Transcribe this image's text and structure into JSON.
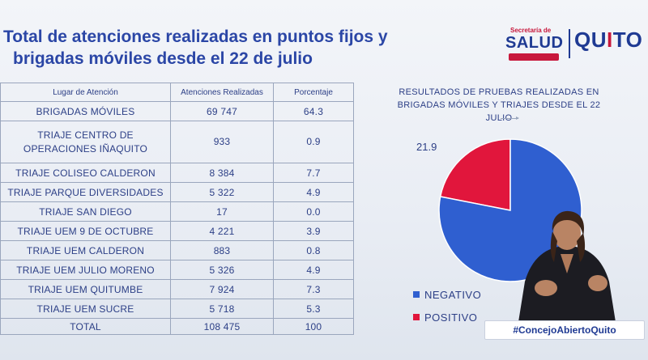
{
  "title": {
    "line1": "Total de atenciones realizadas en puntos fijos y",
    "line2": "brigadas móviles desde el 22 de julio"
  },
  "logos": {
    "salud_sub": "Secretaría de",
    "salud_word": "SALUD",
    "quito_word_a": "QU",
    "quito_word_b": "I",
    "quito_word_c": "TO"
  },
  "table": {
    "headers": [
      "Lugar de Atención",
      "Atenciones Realizadas",
      "Porcentaje"
    ],
    "rows": [
      {
        "place": "BRIGADAS MÓVILES",
        "count": "69 747",
        "pct": "64.3"
      },
      {
        "place": "TRIAJE CENTRO DE OPERACIONES IÑAQUITO",
        "count": "933",
        "pct": "0.9"
      },
      {
        "place": "TRIAJE COLISEO CALDERON",
        "count": "8 384",
        "pct": "7.7"
      },
      {
        "place": "TRIAJE PARQUE DIVERSIDADES",
        "count": "5 322",
        "pct": "4.9"
      },
      {
        "place": "TRIAJE SAN DIEGO",
        "count": "17",
        "pct": "0.0"
      },
      {
        "place": "TRIAJE UEM 9 DE OCTUBRE",
        "count": "4 221",
        "pct": "3.9"
      },
      {
        "place": "TRIAJE UEM CALDERON",
        "count": "883",
        "pct": "0.8"
      },
      {
        "place": "TRIAJE UEM JULIO MORENO",
        "count": "5 326",
        "pct": "4.9"
      },
      {
        "place": "TRIAJE UEM QUITUMBE",
        "count": "7 924",
        "pct": "7.3"
      },
      {
        "place": "TRIAJE UEM SUCRE",
        "count": "5 718",
        "pct": "5.3"
      },
      {
        "place": "TOTAL",
        "count": "108 475",
        "pct": "100"
      }
    ]
  },
  "chart_data": {
    "type": "pie",
    "title": "RESULTADOS DE PRUEBAS REALIZADAS EN BRIGADAS MÓVILES Y TRIAJES DESDE EL 22 JULIO",
    "slices": [
      {
        "name": "NEGATIVO",
        "value": 78.1,
        "color": "#2f5fd0"
      },
      {
        "name": "POSITIVO",
        "value": 21.9,
        "color": "#e1163c"
      }
    ],
    "data_labels": [
      "21.9"
    ],
    "legend_position": "bottom-left"
  },
  "hashtag": "#ConcejoAbiertoQuito"
}
